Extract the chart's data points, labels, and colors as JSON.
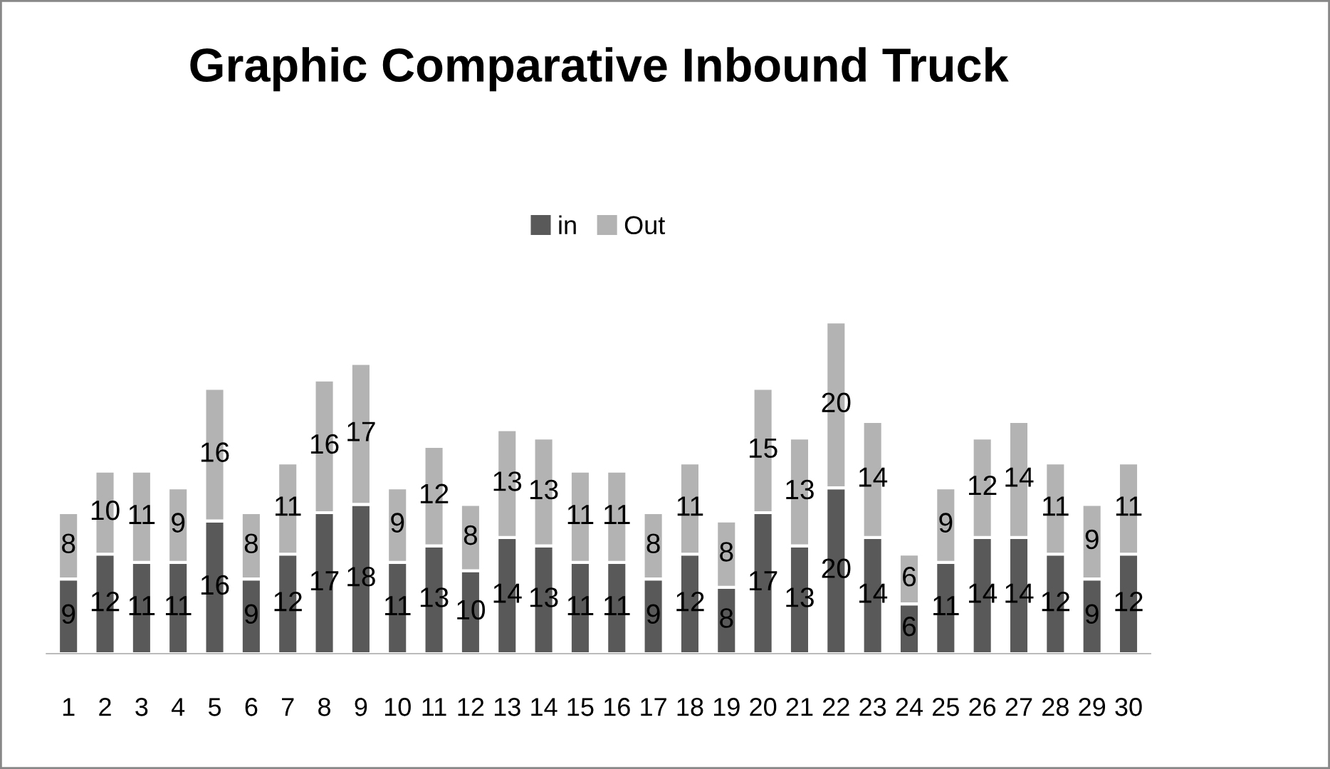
{
  "chart_data": {
    "type": "bar",
    "title": "Graphic Comparative Inbound Truck",
    "stacked": true,
    "data_labels": true,
    "legend": "top",
    "grid": false,
    "categories": [
      "1",
      "2",
      "3",
      "4",
      "5",
      "6",
      "7",
      "8",
      "9",
      "10",
      "11",
      "12",
      "13",
      "14",
      "15",
      "16",
      "17",
      "18",
      "19",
      "20",
      "21",
      "22",
      "23",
      "24",
      "25",
      "26",
      "27",
      "28",
      "29",
      "30"
    ],
    "series": [
      {
        "name": "in",
        "color": "#595959",
        "values": [
          9,
          12,
          11,
          11,
          16,
          9,
          12,
          17,
          18,
          11,
          13,
          10,
          14,
          13,
          11,
          11,
          9,
          12,
          8,
          17,
          13,
          20,
          14,
          6,
          11,
          14,
          14,
          12,
          9,
          12
        ]
      },
      {
        "name": "Out",
        "color": "#b3b3b3",
        "values": [
          8,
          10,
          11,
          9,
          16,
          8,
          11,
          16,
          17,
          9,
          12,
          8,
          13,
          13,
          11,
          11,
          8,
          11,
          8,
          15,
          13,
          20,
          14,
          6,
          9,
          12,
          14,
          11,
          9,
          11
        ]
      }
    ]
  }
}
